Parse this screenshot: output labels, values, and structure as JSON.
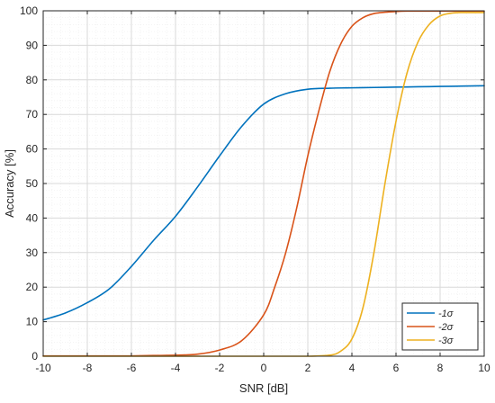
{
  "chart_data": {
    "type": "line",
    "xlabel": "SNR [dB]",
    "ylabel": "Accuracy [%]",
    "xlim": [
      -10,
      10
    ],
    "ylim": [
      0,
      100
    ],
    "xticks": [
      "-10",
      "-8",
      "-6",
      "-4",
      "-2",
      "0",
      "2",
      "4",
      "6",
      "8",
      "10"
    ],
    "yticks": [
      "0",
      "10",
      "20",
      "30",
      "40",
      "50",
      "60",
      "70",
      "80",
      "90",
      "100"
    ],
    "grid": true,
    "minor_grid": true,
    "legend_position": "bottom-right",
    "series": [
      {
        "name": "-1σ",
        "color": "#0072BD",
        "x": [
          -10,
          -9,
          -8,
          -7,
          -6,
          -5,
          -4,
          -3,
          -2,
          -1,
          0,
          1,
          2,
          3,
          4,
          5,
          6,
          7,
          8,
          9,
          10
        ],
        "y": [
          10.5,
          12.5,
          15.5,
          19.5,
          26,
          33.5,
          40.5,
          49,
          58,
          66.5,
          73,
          76,
          77.3,
          77.6,
          77.7,
          77.8,
          77.9,
          78,
          78.1,
          78.2,
          78.3
        ]
      },
      {
        "name": "-2σ",
        "color": "#D95319",
        "x": [
          -10,
          -9,
          -8,
          -7,
          -6,
          -5,
          -4,
          -3,
          -2,
          -1,
          0,
          0.5,
          1,
          1.5,
          2,
          2.5,
          3,
          3.5,
          4,
          4.5,
          5,
          5.5,
          6,
          6.5,
          7,
          7.5,
          8,
          9,
          10
        ],
        "y": [
          0.1,
          0.1,
          0.1,
          0.1,
          0.1,
          0.2,
          0.3,
          0.6,
          1.8,
          4.5,
          12,
          20,
          30,
          43,
          58,
          71,
          82.5,
          90.5,
          95.5,
          98,
          99.2,
          99.6,
          99.8,
          99.9,
          99.9,
          99.9,
          99.9,
          99.9,
          99.9
        ]
      },
      {
        "name": "-3σ",
        "color": "#EDB120",
        "x": [
          -10,
          -8,
          -6,
          -4,
          -2,
          0,
          1,
          2,
          3,
          3.5,
          4,
          4.5,
          5,
          5.5,
          6,
          6.5,
          7,
          7.5,
          8,
          8.5,
          9,
          10
        ],
        "y": [
          0,
          0,
          0,
          0,
          0,
          0,
          0,
          0,
          0.3,
          1.5,
          5,
          14,
          30,
          50,
          68,
          82,
          91,
          96,
          98.5,
          99.3,
          99.5,
          99.5
        ]
      }
    ]
  }
}
